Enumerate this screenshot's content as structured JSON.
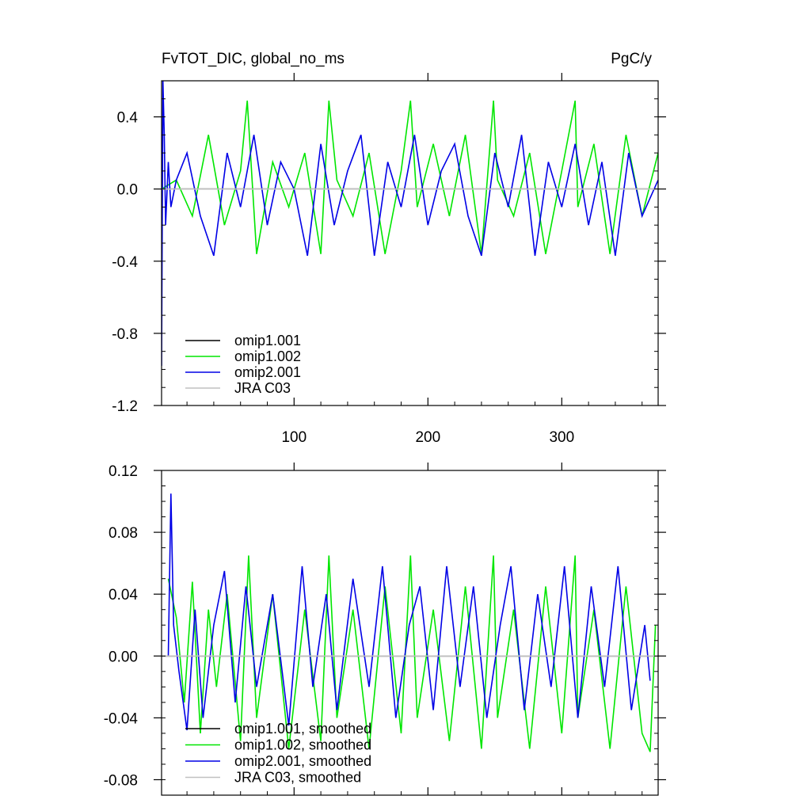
{
  "header": {
    "title_left": "FvTOT_DIC, global_no_ms",
    "title_right": "PgC/y"
  },
  "chart_data": [
    {
      "type": "line",
      "title": "FvTOT_DIC, global_no_ms",
      "units": "PgC/y",
      "xlim": [
        1,
        372
      ],
      "ylim": [
        -1.2,
        0.6
      ],
      "x_ticks": [
        100,
        200,
        300
      ],
      "y_ticks": [
        -1.2,
        -0.8,
        -0.4,
        0.0,
        0.4
      ],
      "y_tick_labels": [
        "-1.2",
        "-0.8",
        "-0.4",
        "0.0",
        "0.4"
      ],
      "legend_position": "bottom-left",
      "series": [
        {
          "name": "omip1.001",
          "color": "#000000",
          "x": [
            1,
            372
          ],
          "y": [
            0.0,
            0.0
          ]
        },
        {
          "name": "omip1.002",
          "color": "#00e600",
          "x": [
            1,
            12,
            24,
            36,
            48,
            60,
            65,
            72,
            84,
            96,
            108,
            120,
            126,
            132,
            144,
            156,
            168,
            180,
            187,
            192,
            204,
            216,
            228,
            240,
            249,
            252,
            264,
            276,
            288,
            300,
            310,
            312,
            324,
            336,
            348,
            360,
            372
          ],
          "y": [
            0.0,
            0.05,
            -0.15,
            0.3,
            -0.2,
            0.1,
            0.49,
            -0.36,
            0.15,
            -0.1,
            0.2,
            -0.36,
            0.49,
            0.05,
            -0.15,
            0.2,
            -0.36,
            0.1,
            0.49,
            -0.1,
            0.25,
            -0.15,
            0.3,
            -0.36,
            0.49,
            0.05,
            -0.15,
            0.2,
            -0.36,
            0.1,
            0.49,
            -0.1,
            0.25,
            -0.36,
            0.3,
            -0.15,
            0.2
          ]
        },
        {
          "name": "omip2.001",
          "color": "#0000e6",
          "x": [
            1,
            2,
            3,
            4,
            6,
            8,
            12,
            20,
            30,
            40,
            50,
            60,
            70,
            80,
            90,
            100,
            110,
            120,
            130,
            140,
            150,
            160,
            170,
            180,
            190,
            200,
            210,
            220,
            230,
            240,
            250,
            260,
            270,
            280,
            290,
            300,
            310,
            320,
            330,
            340,
            350,
            360,
            372
          ],
          "y": [
            -0.98,
            0.6,
            0.3,
            -0.2,
            0.15,
            -0.1,
            0.05,
            0.2,
            -0.15,
            -0.37,
            0.2,
            -0.1,
            0.3,
            -0.2,
            0.15,
            0.0,
            -0.37,
            0.25,
            -0.2,
            0.1,
            0.3,
            -0.37,
            0.15,
            -0.1,
            0.3,
            -0.2,
            0.1,
            0.25,
            -0.15,
            -0.37,
            0.2,
            -0.1,
            0.3,
            -0.37,
            0.15,
            -0.1,
            0.25,
            -0.2,
            0.15,
            -0.37,
            0.2,
            -0.15,
            0.05
          ]
        },
        {
          "name": "JRA C03",
          "color": "#c0c0c0",
          "x": [
            1,
            372
          ],
          "y": [
            0.0,
            0.0
          ]
        }
      ]
    },
    {
      "type": "line",
      "xlim": [
        1,
        372
      ],
      "ylim": [
        -0.09,
        0.12
      ],
      "x_ticks": [
        100,
        200,
        300
      ],
      "y_ticks": [
        -0.08,
        -0.04,
        0.0,
        0.04,
        0.08,
        0.12
      ],
      "y_tick_labels": [
        "-0.08",
        "-0.04",
        "0.00",
        "0.04",
        "0.08",
        "0.12"
      ],
      "legend_position": "bottom-left",
      "series": [
        {
          "name": "omip1.001, smoothed",
          "color": "#000000",
          "x": [
            1,
            372
          ],
          "y": [
            0.0,
            0.0
          ]
        },
        {
          "name": "omip1.002, smoothed",
          "color": "#00e600",
          "x": [
            6,
            12,
            18,
            24,
            30,
            36,
            42,
            50,
            60,
            66,
            72,
            84,
            96,
            108,
            120,
            126,
            132,
            144,
            156,
            168,
            180,
            187,
            192,
            204,
            216,
            228,
            240,
            249,
            252,
            264,
            276,
            288,
            300,
            310,
            312,
            324,
            336,
            348,
            360,
            366,
            370
          ],
          "y": [
            0.05,
            0.025,
            -0.03,
            0.048,
            -0.05,
            0.03,
            -0.02,
            0.04,
            -0.055,
            0.065,
            -0.04,
            0.04,
            -0.06,
            0.03,
            -0.055,
            0.065,
            -0.04,
            0.03,
            -0.06,
            0.045,
            -0.05,
            0.065,
            -0.04,
            0.03,
            -0.055,
            0.045,
            -0.06,
            0.065,
            -0.04,
            0.03,
            -0.06,
            0.045,
            -0.05,
            0.065,
            -0.04,
            0.03,
            -0.06,
            0.045,
            -0.05,
            -0.062,
            0.02
          ]
        },
        {
          "name": "omip2.001, smoothed",
          "color": "#0000e6",
          "x": [
            6,
            8,
            10,
            14,
            20,
            26,
            32,
            40,
            48,
            56,
            64,
            72,
            84,
            96,
            106,
            114,
            124,
            132,
            144,
            156,
            166,
            176,
            186,
            194,
            204,
            214,
            224,
            234,
            244,
            254,
            262,
            272,
            282,
            292,
            302,
            312,
            322,
            332,
            342,
            352,
            362,
            366
          ],
          "y": [
            0.0,
            0.105,
            0.02,
            -0.01,
            -0.048,
            0.03,
            -0.04,
            0.02,
            0.055,
            -0.03,
            0.045,
            -0.02,
            0.04,
            -0.045,
            0.058,
            -0.02,
            0.04,
            -0.035,
            0.05,
            -0.02,
            0.058,
            -0.04,
            0.02,
            0.045,
            -0.035,
            0.058,
            -0.02,
            0.045,
            -0.04,
            0.02,
            0.058,
            -0.035,
            0.04,
            -0.02,
            0.058,
            -0.04,
            0.045,
            -0.02,
            0.058,
            -0.035,
            0.02,
            -0.016
          ]
        },
        {
          "name": "JRA C03, smoothed",
          "color": "#c0c0c0",
          "x": [
            1,
            372
          ],
          "y": [
            0.0,
            0.0
          ]
        }
      ]
    }
  ]
}
